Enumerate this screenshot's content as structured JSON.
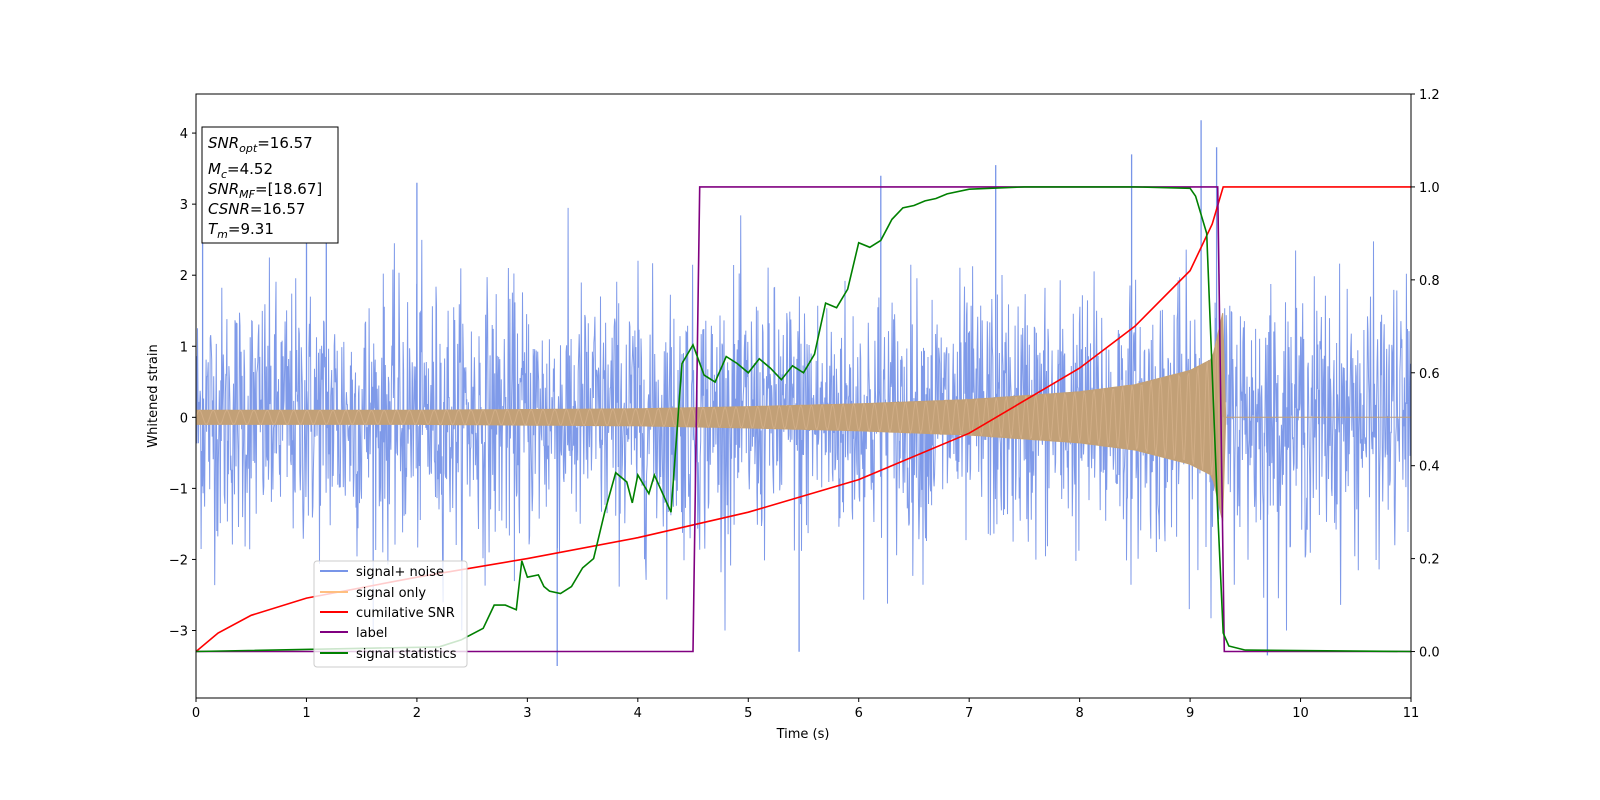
{
  "chart_data": {
    "type": "line",
    "xlabel": "Time (s)",
    "ylabel": "Whitened strain",
    "xlim": [
      0,
      11
    ],
    "ylim_left": [
      -3.95,
      4.55
    ],
    "ylim_right": [
      -0.1,
      1.2
    ],
    "x_ticks": [
      0,
      1,
      2,
      3,
      4,
      5,
      6,
      7,
      8,
      9,
      10,
      11
    ],
    "y_ticks_left": [
      -3,
      -2,
      -1,
      0,
      1,
      2,
      3,
      4
    ],
    "y_ticks_right": [
      0.0,
      0.2,
      0.4,
      0.6,
      0.8,
      1.0,
      1.2
    ],
    "x_tick_labels": [
      "0",
      "1",
      "2",
      "3",
      "4",
      "5",
      "6",
      "7",
      "8",
      "9",
      "10",
      "11"
    ],
    "y_tick_labels_left": [
      "−3",
      "−2",
      "−1",
      "0",
      "1",
      "2",
      "3",
      "4"
    ],
    "y_tick_labels_right": [
      "0.0",
      "0.2",
      "0.4",
      "0.6",
      "0.8",
      "1.0",
      "1.2"
    ],
    "legend_placement": "lower-left",
    "info_box": {
      "snr_opt": {
        "sym": "SNR",
        "sub": "opt",
        "value": "=16.57"
      },
      "mc": {
        "sym": "M",
        "sub": "c",
        "value": "=4.52"
      },
      "snr_mf": {
        "sym": "SNR",
        "sub": "MF",
        "value": "=[18.67]"
      },
      "csnr": {
        "sym": "CSNR",
        "value": "=16.57"
      },
      "tm": {
        "sym": "T",
        "sub": "m",
        "value": "=9.31"
      }
    },
    "series": [
      {
        "name": "signal+ noise",
        "color": "#7895e8",
        "axis": "left",
        "description_points": {
          "noise_sigma": 0.9,
          "notable_spikes": [
            [
              0.06,
              2.6
            ],
            [
              1.0,
              2.9
            ],
            [
              1.18,
              3.1
            ],
            [
              2.0,
              3.3
            ],
            [
              3.27,
              -3.5
            ],
            [
              5.46,
              -3.3
            ],
            [
              6.2,
              3.4
            ],
            [
              7.24,
              3.55
            ],
            [
              8.47,
              3.7
            ],
            [
              9.1,
              4.18
            ],
            [
              9.24,
              3.8
            ],
            [
              9.7,
              -3.35
            ]
          ]
        }
      },
      {
        "name": "signal only",
        "color": "#c2a077",
        "axis": "left",
        "amplitude_envelope": [
          [
            0,
            0.1
          ],
          [
            2,
            0.1
          ],
          [
            4,
            0.12
          ],
          [
            5,
            0.15
          ],
          [
            6,
            0.19
          ],
          [
            7,
            0.25
          ],
          [
            8,
            0.36
          ],
          [
            8.5,
            0.46
          ],
          [
            9,
            0.66
          ],
          [
            9.2,
            0.82
          ],
          [
            9.3,
            1.5
          ],
          [
            9.32,
            0.0
          ],
          [
            11,
            0.0
          ]
        ]
      },
      {
        "name": "cumilative SNR",
        "color": "#ff0000",
        "axis": "right",
        "points": [
          [
            0,
            0.0
          ],
          [
            0.2,
            0.04
          ],
          [
            0.5,
            0.078
          ],
          [
            1,
            0.115
          ],
          [
            2,
            0.16
          ],
          [
            3,
            0.2
          ],
          [
            4,
            0.245
          ],
          [
            5,
            0.3
          ],
          [
            6,
            0.37
          ],
          [
            7,
            0.47
          ],
          [
            8,
            0.61
          ],
          [
            8.5,
            0.7
          ],
          [
            9,
            0.82
          ],
          [
            9.2,
            0.92
          ],
          [
            9.3,
            1.0
          ],
          [
            11,
            1.0
          ]
        ]
      },
      {
        "name": "label",
        "color": "#800080",
        "axis": "right",
        "points": [
          [
            0,
            0.0
          ],
          [
            4.5,
            0.0
          ],
          [
            4.56,
            1.0
          ],
          [
            9.25,
            1.0
          ],
          [
            9.31,
            0.0
          ],
          [
            11,
            0.0
          ]
        ]
      },
      {
        "name": "signal statistics",
        "color": "#008000",
        "axis": "right",
        "points": [
          [
            0,
            0.0
          ],
          [
            2.2,
            0.01
          ],
          [
            2.4,
            0.025
          ],
          [
            2.6,
            0.05
          ],
          [
            2.7,
            0.1
          ],
          [
            2.8,
            0.1
          ],
          [
            2.9,
            0.09
          ],
          [
            2.95,
            0.195
          ],
          [
            3.0,
            0.16
          ],
          [
            3.1,
            0.165
          ],
          [
            3.15,
            0.14
          ],
          [
            3.2,
            0.13
          ],
          [
            3.3,
            0.125
          ],
          [
            3.4,
            0.14
          ],
          [
            3.5,
            0.18
          ],
          [
            3.6,
            0.2
          ],
          [
            3.7,
            0.3
          ],
          [
            3.8,
            0.385
          ],
          [
            3.9,
            0.365
          ],
          [
            3.95,
            0.32
          ],
          [
            4.0,
            0.38
          ],
          [
            4.1,
            0.34
          ],
          [
            4.15,
            0.38
          ],
          [
            4.3,
            0.3
          ],
          [
            4.4,
            0.62
          ],
          [
            4.5,
            0.66
          ],
          [
            4.6,
            0.595
          ],
          [
            4.7,
            0.58
          ],
          [
            4.8,
            0.635
          ],
          [
            4.9,
            0.62
          ],
          [
            5.0,
            0.6
          ],
          [
            5.1,
            0.63
          ],
          [
            5.2,
            0.61
          ],
          [
            5.3,
            0.585
          ],
          [
            5.4,
            0.615
          ],
          [
            5.5,
            0.6
          ],
          [
            5.6,
            0.64
          ],
          [
            5.7,
            0.75
          ],
          [
            5.8,
            0.74
          ],
          [
            5.9,
            0.78
          ],
          [
            6.0,
            0.88
          ],
          [
            6.1,
            0.87
          ],
          [
            6.2,
            0.885
          ],
          [
            6.3,
            0.93
          ],
          [
            6.4,
            0.955
          ],
          [
            6.5,
            0.96
          ],
          [
            6.6,
            0.97
          ],
          [
            6.7,
            0.975
          ],
          [
            6.8,
            0.985
          ],
          [
            7.0,
            0.995
          ],
          [
            7.5,
            1.0
          ],
          [
            8.0,
            1.0
          ],
          [
            8.5,
            1.0
          ],
          [
            9.0,
            0.997
          ],
          [
            9.05,
            0.98
          ],
          [
            9.15,
            0.9
          ],
          [
            9.2,
            0.6
          ],
          [
            9.25,
            0.3
          ],
          [
            9.3,
            0.04
          ],
          [
            9.35,
            0.012
          ],
          [
            9.5,
            0.003
          ],
          [
            11,
            0.0
          ]
        ]
      }
    ]
  }
}
